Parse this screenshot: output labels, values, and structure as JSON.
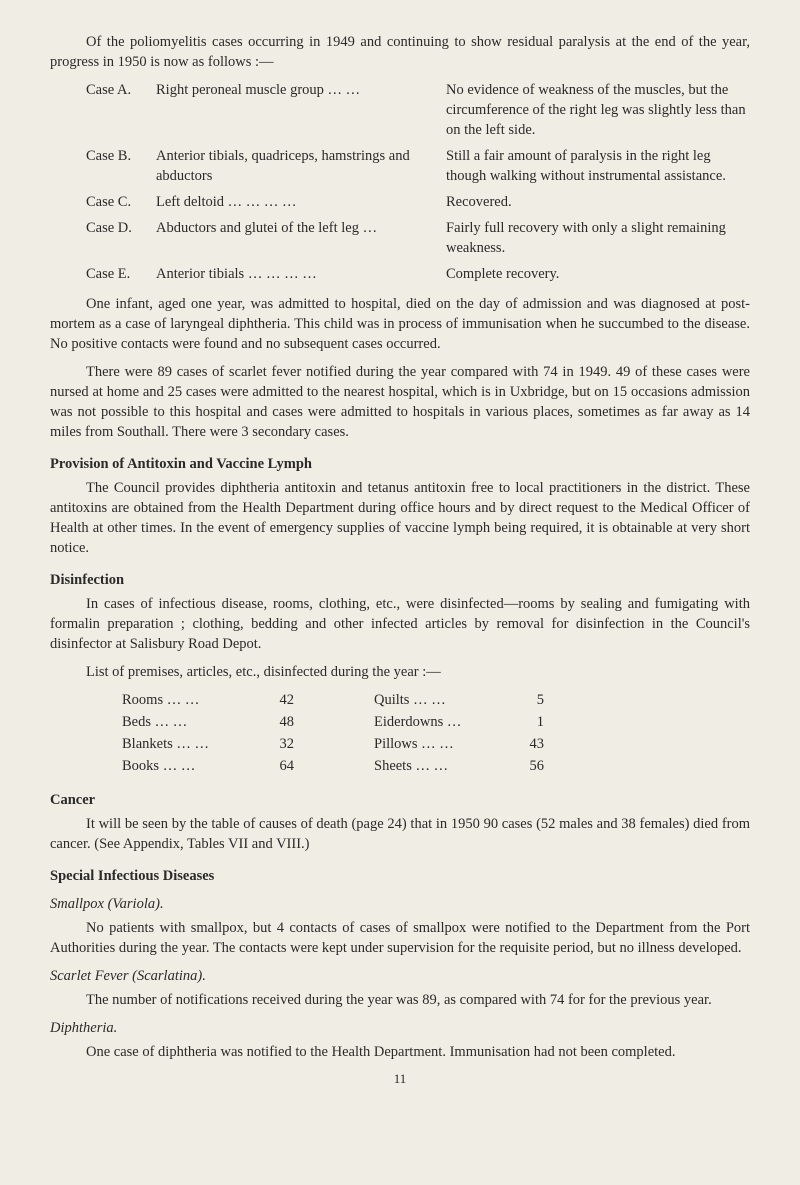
{
  "intro": "Of the poliomyelitis cases occurring in 1949 and continuing to show residual paralysis at the end of the year, progress in 1950 is now as follows :—",
  "cases": [
    {
      "label": "Case A.",
      "desc": "Right peroneal muscle group …   …",
      "outcome": "No evidence of weakness of the muscles, but the circumference of the right leg was slightly less than on the left side."
    },
    {
      "label": "Case B.",
      "desc": "Anterior tibials, quadriceps, hamstrings and abductors",
      "outcome": "Still a fair amount of paralysis in the right leg though walking without instrumental assistance."
    },
    {
      "label": "Case C.",
      "desc": "Left deltoid       …     …     …     …",
      "outcome": "Recovered."
    },
    {
      "label": "Case D.",
      "desc": "Abductors and glutei of the left leg …",
      "outcome": "Fairly full recovery with only a slight remaining weakness."
    },
    {
      "label": "Case E.",
      "desc": "Anterior tibials …     …     …     …",
      "outcome": "Complete recovery."
    }
  ],
  "para1": "One infant, aged one year, was admitted to hospital, died on the day of admission and was diagnosed at post-mortem as a case of laryngeal diphtheria. This child was in process of immunisation when he succumbed to the disease. No positive contacts were found and no subsequent cases occurred.",
  "para2": "There were 89 cases of scarlet fever notified during the year compared with 74 in 1949. 49 of these cases were nursed at home and 25 cases were admitted to the nearest hospital, which is in Uxbridge, but on 15 occasions admission was not possible to this hospital and cases were admitted to hospitals in various places, sometimes as far away as 14 miles from Southall. There were 3 secondary cases.",
  "heading1": "Provision of Antitoxin and Vaccine Lymph",
  "para3": "The Council provides diphtheria antitoxin and tetanus antitoxin free to local practitioners in the district. These antitoxins are obtained from the Health Department during office hours and by direct request to the Medical Officer of Health at other times. In the event of emergency supplies of vaccine lymph being required, it is obtainable at very short notice.",
  "heading2": "Disinfection",
  "para4": "In cases of infectious disease, rooms, clothing, etc., were disinfected—rooms by sealing and fumigating with formalin preparation ; clothing, bedding and other infected articles by removal for disinfection in the Council's disinfector at Salisbury Road Depot.",
  "listIntro": "List of premises, articles, etc., disinfected during the year :—",
  "disinfection": {
    "left": [
      {
        "item": "Rooms    …   …",
        "val": "42"
      },
      {
        "item": "Beds       …   …",
        "val": "48"
      },
      {
        "item": "Blankets  …   …",
        "val": "32"
      },
      {
        "item": "Books     …   …",
        "val": "64"
      }
    ],
    "right": [
      {
        "item": "Quilts      …   …",
        "val": "5"
      },
      {
        "item": "Eiderdowns    …",
        "val": "1"
      },
      {
        "item": "Pillows     …   …",
        "val": "43"
      },
      {
        "item": "Sheets      …   …",
        "val": "56"
      }
    ]
  },
  "heading3": "Cancer",
  "para5": "It will be seen by the table of causes of death (page 24) that in 1950 90 cases (52 males and 38 females) died from cancer. (See Appendix, Tables VII and VIII.)",
  "heading4": "Special Infectious Diseases",
  "sub1": "Smallpox (Variola).",
  "para6": "No patients with smallpox, but 4 contacts of cases of smallpox were notified to the Department from the Port Authorities during the year. The contacts were kept under supervision for the requisite period, but no illness developed.",
  "sub2": "Scarlet Fever (Scarlatina).",
  "para7": "The number of notifications received during the year was 89, as compared with 74 for for the previous year.",
  "sub3": "Diphtheria.",
  "para8": "One case of diphtheria was notified to the Health Department. Immunisation had not been completed.",
  "pageNum": "11"
}
